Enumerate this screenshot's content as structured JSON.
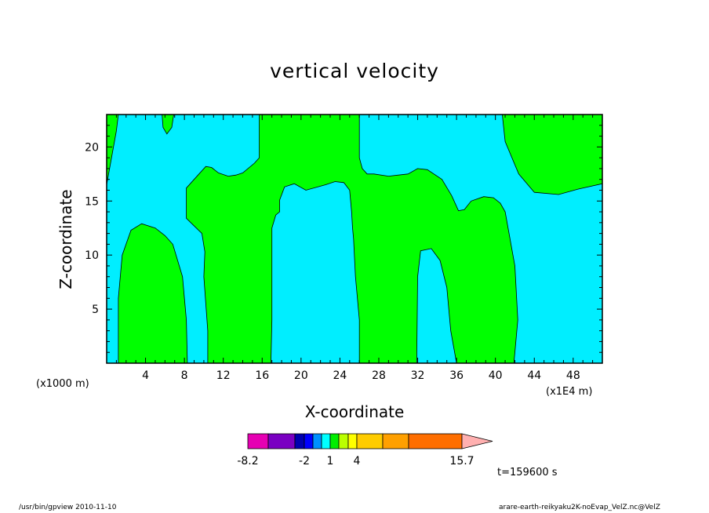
{
  "chart_data": {
    "type": "heatmap",
    "title": "vertical velocity",
    "xlabel": "X-coordinate",
    "ylabel": "Z-coordinate",
    "x_unit_left": "(x1000 m)",
    "x_unit_right": "(x1E4 m)",
    "xlim": [
      0,
      51
    ],
    "ylim": [
      0,
      23
    ],
    "x_ticks": [
      4,
      8,
      12,
      16,
      20,
      24,
      28,
      32,
      36,
      40,
      44,
      48
    ],
    "y_ticks": [
      5,
      10,
      15,
      20
    ],
    "colors": {
      "positive": "#00ff00",
      "negative": "#00eeff",
      "contour": "#000000"
    },
    "regions": [
      {
        "sign": "positive",
        "points": [
          [
            0,
            23
          ],
          [
            1.2,
            23
          ],
          [
            1,
            21.5
          ],
          [
            0,
            16.5
          ]
        ]
      },
      {
        "sign": "positive",
        "points": [
          [
            5.7,
            23
          ],
          [
            6.9,
            23
          ],
          [
            6.7,
            21.8
          ],
          [
            6.2,
            21.2
          ],
          [
            5.8,
            21.8
          ]
        ]
      },
      {
        "sign": "positive",
        "points": [
          [
            1.2,
            0
          ],
          [
            1.2,
            6
          ],
          [
            1.6,
            10
          ],
          [
            2.5,
            12.3
          ],
          [
            3.6,
            12.9
          ],
          [
            5,
            12.5
          ],
          [
            6,
            11.8
          ],
          [
            6.8,
            11
          ],
          [
            7.8,
            8
          ],
          [
            8.2,
            4
          ],
          [
            8.3,
            0
          ]
        ]
      },
      {
        "sign": "positive",
        "points": [
          [
            10.4,
            0
          ],
          [
            10.4,
            3
          ],
          [
            10,
            8
          ],
          [
            10.1,
            10.3
          ],
          [
            9.8,
            12
          ],
          [
            8.2,
            13.4
          ],
          [
            8.2,
            16.2
          ],
          [
            9.5,
            17.5
          ],
          [
            10.2,
            18.2
          ],
          [
            10.8,
            18.1
          ],
          [
            11.5,
            17.6
          ],
          [
            12.5,
            17.3
          ],
          [
            13.3,
            17.4
          ],
          [
            14,
            17.6
          ],
          [
            15.2,
            18.5
          ],
          [
            15.7,
            19
          ],
          [
            15.7,
            23
          ],
          [
            26,
            23
          ],
          [
            26,
            19
          ],
          [
            26.3,
            18
          ],
          [
            26.8,
            17.5
          ],
          [
            27.5,
            17.5
          ],
          [
            29,
            17.3
          ],
          [
            31,
            17.5
          ],
          [
            32,
            18
          ],
          [
            33,
            17.9
          ],
          [
            34.5,
            17
          ],
          [
            35.5,
            15.5
          ],
          [
            36.2,
            14.1
          ],
          [
            36.8,
            14.2
          ],
          [
            37.5,
            15
          ],
          [
            38.8,
            15.4
          ],
          [
            39.8,
            15.3
          ],
          [
            40.5,
            14.8
          ],
          [
            41,
            14
          ],
          [
            42,
            9
          ],
          [
            42.3,
            4
          ],
          [
            42,
            1
          ],
          [
            41.9,
            0
          ],
          [
            36,
            0
          ],
          [
            35.4,
            3
          ],
          [
            35,
            7
          ],
          [
            34.3,
            9.5
          ],
          [
            33.4,
            10.6
          ],
          [
            32.3,
            10.4
          ],
          [
            32,
            8
          ],
          [
            31.9,
            0
          ],
          [
            26,
            0
          ],
          [
            26,
            4
          ],
          [
            25.6,
            8
          ],
          [
            25.4,
            11.5
          ],
          [
            25.3,
            12.5
          ],
          [
            25.2,
            14
          ],
          [
            25,
            16
          ],
          [
            24.4,
            16.7
          ],
          [
            23.5,
            16.8
          ],
          [
            22.5,
            16.5
          ],
          [
            20.5,
            16
          ],
          [
            19.3,
            16.6
          ],
          [
            18.3,
            16.3
          ],
          [
            17.8,
            15.1
          ],
          [
            17.8,
            14
          ],
          [
            17.4,
            13.7
          ],
          [
            17,
            12.5
          ],
          [
            17,
            4
          ],
          [
            16.9,
            0
          ]
        ]
      },
      {
        "sign": "positive",
        "points": [
          [
            40.7,
            23
          ],
          [
            51,
            23
          ],
          [
            51,
            16.6
          ],
          [
            48.5,
            16.1
          ],
          [
            46.5,
            15.6
          ],
          [
            44,
            15.8
          ],
          [
            42.4,
            17.5
          ],
          [
            41,
            20.5
          ]
        ]
      }
    ]
  },
  "colorbar": {
    "colors": [
      "#e600b3",
      "#7a00c2",
      "#0000b0",
      "#0000ff",
      "#0090ff",
      "#00ffff",
      "#00ee00",
      "#bbff00",
      "#ffff00",
      "#ffcc00",
      "#ffa000",
      "#ff6e00",
      "#ff0000",
      "#ff7a7a",
      "#ffb0b0"
    ],
    "labels": [
      "-8.2",
      "-2",
      "1",
      "4",
      "15.7"
    ]
  },
  "time_label": "t=159600 s",
  "footer_left": "/usr/bin/gpview  2010-11-10",
  "footer_right": "arare-earth-reikyaku2K-noEvap_VelZ.nc@VelZ"
}
